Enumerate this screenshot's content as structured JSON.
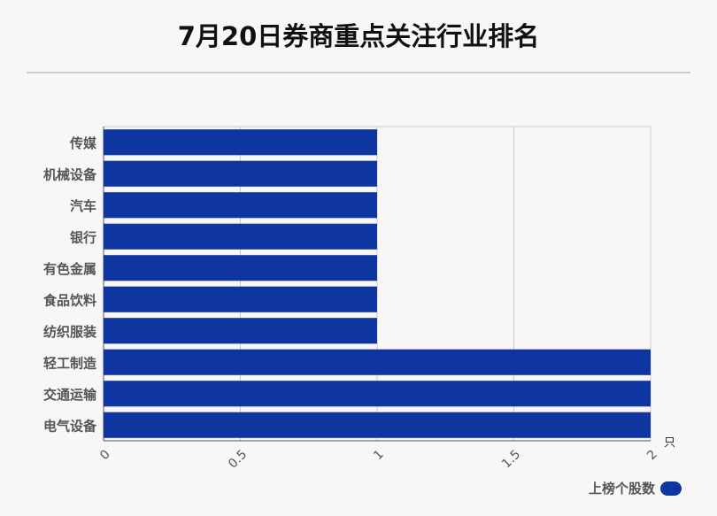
{
  "title": "7月20日券商重点关注行业排名",
  "legend": {
    "label": "上榜个股数"
  },
  "colors": {
    "bar": "#0f35a0",
    "grid": "#cccccc",
    "label": "#555555"
  },
  "chart_data": {
    "type": "bar",
    "orientation": "horizontal",
    "title": "7月20日券商重点关注行业排名",
    "categories": [
      "传媒",
      "机械设备",
      "汽车",
      "银行",
      "有色金属",
      "食品饮料",
      "纺织服装",
      "轻工制造",
      "交通运输",
      "电气设备"
    ],
    "series": [
      {
        "name": "上榜个股数",
        "values": [
          1,
          1,
          1,
          1,
          1,
          1,
          1,
          2,
          2,
          2
        ]
      }
    ],
    "xlim": [
      0,
      2
    ],
    "x_ticks": [
      "0",
      "0.5",
      "1",
      "1.5",
      "2"
    ],
    "x_unit": "只",
    "grid": true,
    "legend_position": "bottom-right"
  }
}
